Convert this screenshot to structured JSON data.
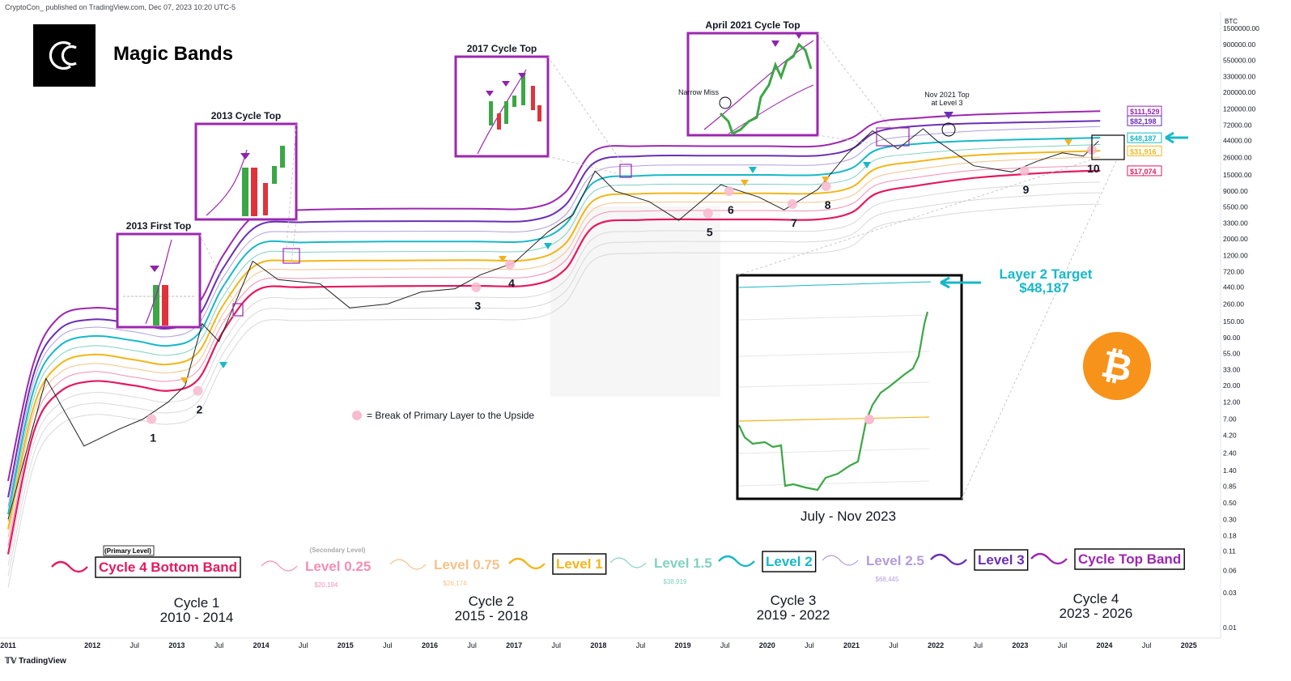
{
  "header": {
    "publisher": "CryptoCon_ published on TradingView.com, Dec 07, 2023 10:20 UTC-5",
    "symbol": "BTC",
    "title": "Magic Bands",
    "footer": "TradingView"
  },
  "colors": {
    "cycle_top": "#9c27b0",
    "level3": "#6a2fb4",
    "level25": "#b39ddb",
    "level2": "#17b8c8",
    "level15": "#7fd1c0",
    "level1": "#f2b61a",
    "level075": "#f5c28a",
    "level025": "#f48fb1",
    "bottom": "#e5195f",
    "price": "#222222",
    "candle_up": "#3ca745",
    "candle_down": "#e0323a",
    "arrow_purple": "#8e24aa",
    "arrow_cyan": "#17b8c8",
    "arrow_orange": "#f6b122",
    "bitcoin": "#f7931a"
  },
  "chart_data": {
    "type": "line",
    "title": "Magic Bands",
    "xlabel": "",
    "ylabel": "",
    "y_scale": "log",
    "x_ticks": [
      "2011",
      "2012",
      "Jul",
      "2013",
      "Jul",
      "2014",
      "Jul",
      "2015",
      "Jul",
      "2016",
      "Jul",
      "2017",
      "Jul",
      "2018",
      "Jul",
      "2019",
      "Jul",
      "2020",
      "Jul",
      "2021",
      "Jul",
      "2022",
      "Jul",
      "2023",
      "Jul",
      "2024",
      "Jul",
      "2025"
    ],
    "y_ticks": [
      "1500000.00",
      "900000.00",
      "550000.00",
      "330000.00",
      "200000.00",
      "120000.00",
      "72000.00",
      "44000.00",
      "26000.00",
      "15000.00",
      "9000.00",
      "5500.00",
      "3300.00",
      "2000.00",
      "1200.00",
      "720.00",
      "440.00",
      "260.00",
      "150.00",
      "90.00",
      "55.00",
      "33.00",
      "20.00",
      "12.00",
      "7.00",
      "4.20",
      "2.40",
      "1.40",
      "0.85",
      "0.50",
      "0.30",
      "0.18",
      "0.11",
      "0.06",
      "0.03",
      "0.01"
    ],
    "ylim": [
      0.01,
      1500000
    ],
    "xlim": [
      2011.0,
      2025.3
    ],
    "band_x": [
      2011.0,
      2011.3,
      2011.6,
      2012.0,
      2012.5,
      2012.9,
      2013.25,
      2013.55,
      2013.95,
      2014.5,
      2015.5,
      2016.5,
      2017.2,
      2017.6,
      2017.95,
      2018.5,
      2019.3,
      2020.0,
      2020.6,
      2021.0,
      2021.3,
      2021.8,
      2022.5,
      2023.5,
      2023.95
    ],
    "series": [
      {
        "name": "Cycle Top Band",
        "role": "cycle_top",
        "values": [
          1.0,
          40,
          170,
          230,
          205,
          185,
          260,
          1200,
          4400,
          5000,
          5200,
          5200,
          5300,
          8500,
          32000,
          37000,
          37000,
          37000,
          37000,
          48000,
          78000,
          90000,
          100000,
          108000,
          111529
        ]
      },
      {
        "name": "Level 3",
        "role": "level3",
        "values": [
          0.6,
          28,
          115,
          160,
          140,
          120,
          175,
          800,
          3000,
          3400,
          3500,
          3500,
          3600,
          5700,
          22000,
          27000,
          27500,
          27500,
          27500,
          34000,
          58000,
          70000,
          76000,
          80000,
          82198
        ]
      },
      {
        "name": "Level 2.5",
        "role": "level25",
        "values": [
          0.45,
          22,
          90,
          125,
          108,
          93,
          135,
          600,
          2200,
          2500,
          2550,
          2560,
          2600,
          4200,
          16000,
          20000,
          20500,
          20500,
          20500,
          25000,
          43000,
          52000,
          60000,
          66000,
          68445
        ]
      },
      {
        "name": "Level 2",
        "role": "level2",
        "values": [
          0.35,
          17,
          68,
          95,
          82,
          70,
          100,
          450,
          1650,
          1800,
          1850,
          1850,
          1900,
          3100,
          12000,
          14600,
          15000,
          15000,
          15000,
          18500,
          33000,
          40000,
          44000,
          47000,
          48187
        ]
      },
      {
        "name": "Level 1.5",
        "role": "level15",
        "values": [
          0.28,
          13,
          50,
          70,
          60,
          52,
          74,
          330,
          1200,
          1320,
          1350,
          1360,
          1400,
          2250,
          9000,
          11000,
          11200,
          11200,
          11200,
          13500,
          24500,
          29500,
          34000,
          37500,
          38919
        ]
      },
      {
        "name": "Level 1",
        "role": "level1",
        "values": [
          0.22,
          10,
          38,
          53,
          45,
          39,
          56,
          250,
          900,
          1000,
          1020,
          1030,
          1050,
          1700,
          6800,
          8300,
          8400,
          8400,
          8400,
          10200,
          18500,
          23000,
          28000,
          31000,
          31916
        ]
      },
      {
        "name": "Level 0.75",
        "role": "level075",
        "values": [
          0.17,
          8,
          29,
          40,
          34,
          30,
          42,
          190,
          680,
          760,
          780,
          790,
          800,
          1300,
          5200,
          6300,
          6400,
          6400,
          6400,
          7800,
          14000,
          18000,
          22500,
          25500,
          26174
        ]
      },
      {
        "name": "Level 0.25",
        "role": "level025",
        "values": [
          0.13,
          6,
          22,
          31,
          26,
          23,
          32,
          145,
          520,
          580,
          600,
          605,
          615,
          1000,
          4000,
          4800,
          4900,
          4900,
          4900,
          6000,
          11000,
          14000,
          17500,
          19500,
          20194
        ]
      },
      {
        "name": "Cycle 4 Bottom Band",
        "role": "bottom",
        "values": [
          0.1,
          4.5,
          16,
          23,
          20,
          17,
          24,
          110,
          400,
          440,
          455,
          460,
          470,
          760,
          3000,
          3650,
          3700,
          3700,
          3700,
          4600,
          8400,
          10800,
          13800,
          16500,
          17074
        ]
      }
    ],
    "price": {
      "name": "BTC",
      "x": [
        2011.0,
        2011.45,
        2011.9,
        2012.3,
        2012.6,
        2012.9,
        2013.1,
        2013.3,
        2013.5,
        2013.9,
        2014.2,
        2014.7,
        2015.05,
        2015.5,
        2015.9,
        2016.3,
        2016.6,
        2017.0,
        2017.4,
        2017.7,
        2017.96,
        2018.2,
        2018.6,
        2018.95,
        2019.45,
        2019.9,
        2020.2,
        2020.6,
        2020.95,
        2021.25,
        2021.55,
        2021.85,
        2022.0,
        2022.45,
        2022.9,
        2023.2,
        2023.5,
        2023.75,
        2023.93
      ],
      "y": [
        0.3,
        25,
        3,
        5,
        7,
        12,
        20,
        140,
        80,
        1000,
        560,
        490,
        230,
        260,
        380,
        420,
        650,
        950,
        2500,
        4300,
        17000,
        9000,
        6500,
        3600,
        11000,
        7500,
        5000,
        9500,
        29000,
        60000,
        34000,
        64000,
        45000,
        20000,
        16500,
        23000,
        30000,
        27000,
        43500
      ]
    },
    "level_values": [
      {
        "label": "$111,529",
        "value": 111529,
        "role": "cycle_top"
      },
      {
        "label": "$82,198",
        "value": 82198,
        "role": "level3"
      },
      {
        "label": "$48,187",
        "value": 48187,
        "role": "level2"
      },
      {
        "label": "$31,916",
        "value": 31916,
        "role": "level1"
      },
      {
        "label": "$17,074",
        "value": 17074,
        "role": "bottom"
      }
    ],
    "break_markers": [
      {
        "label": "1",
        "x": 2012.7,
        "y": 7
      },
      {
        "label": "2",
        "x": 2013.25,
        "y": 17
      },
      {
        "label": "3",
        "x": 2016.55,
        "y": 440
      },
      {
        "label": "4",
        "x": 2016.95,
        "y": 900
      },
      {
        "label": "5",
        "x": 2019.3,
        "y": 4500
      },
      {
        "label": "6",
        "x": 2019.55,
        "y": 9000
      },
      {
        "label": "7",
        "x": 2020.3,
        "y": 6000
      },
      {
        "label": "8",
        "x": 2020.7,
        "y": 10500
      },
      {
        "label": "9",
        "x": 2023.05,
        "y": 17000
      },
      {
        "label": "10",
        "x": 2023.85,
        "y": 33000
      }
    ],
    "annotations": [
      {
        "text": "2013 First Top"
      },
      {
        "text": "2013 Cycle Top"
      },
      {
        "text": "2017 Cycle Top"
      },
      {
        "text": "April 2021 Cycle Top"
      },
      {
        "text": "Narrow Miss"
      },
      {
        "text": "Nov 2021 Top"
      },
      {
        "text": "at Level 3"
      },
      {
        "text": "= Break of Primary Layer to the Upside"
      },
      {
        "text": "Layer 2 Target"
      },
      {
        "text": "$48,187"
      },
      {
        "text": "July - Nov 2023"
      }
    ],
    "legend": [
      {
        "label": "Cycle 4 Bottom Band",
        "role": "bottom",
        "boxed": true,
        "tag": "(Primary Level)",
        "value": ""
      },
      {
        "label": "Level 0.25",
        "role": "level025",
        "boxed": false,
        "tag": "(Secondary Level)",
        "value": "$20,194"
      },
      {
        "label": "Level 0.75",
        "role": "level075",
        "boxed": false,
        "tag": "",
        "value": "$26,174"
      },
      {
        "label": "Level 1",
        "role": "level1",
        "boxed": true,
        "tag": "",
        "value": ""
      },
      {
        "label": "Level 1.5",
        "role": "level15",
        "boxed": false,
        "tag": "",
        "value": "$38,919"
      },
      {
        "label": "Level 2",
        "role": "level2",
        "boxed": true,
        "tag": "",
        "value": ""
      },
      {
        "label": "Level 2.5",
        "role": "level25",
        "boxed": false,
        "tag": "",
        "value": "$68,445"
      },
      {
        "label": "Level 3",
        "role": "level3",
        "boxed": true,
        "tag": "",
        "value": ""
      },
      {
        "label": "Cycle Top Band",
        "role": "cycle_top",
        "boxed": true,
        "tag": "",
        "value": ""
      }
    ],
    "cycles": [
      {
        "name": "Cycle 1",
        "years": "2010 - 2014"
      },
      {
        "name": "Cycle 2",
        "years": "2015 - 2018"
      },
      {
        "name": "Cycle 3",
        "years": "2019 - 2022"
      },
      {
        "name": "Cycle 4",
        "years": "2023 - 2026"
      }
    ],
    "grid": false,
    "legend_position": "bottom"
  }
}
